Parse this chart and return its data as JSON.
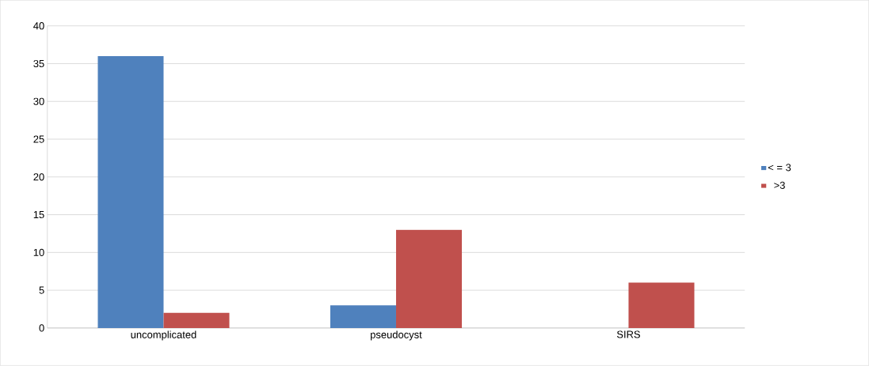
{
  "chart_data": {
    "type": "bar",
    "categories": [
      "uncomplicated",
      "pseudocyst",
      "SIRS"
    ],
    "series": [
      {
        "name": "< = 3",
        "color": "#4f81bd",
        "values": [
          36,
          3,
          0
        ]
      },
      {
        "name": ">3",
        "color": "#c0504d",
        "values": [
          2,
          13,
          6
        ]
      }
    ],
    "ylim": [
      0,
      40
    ],
    "yticks": [
      0,
      5,
      10,
      15,
      20,
      25,
      30,
      35,
      40
    ],
    "grid": "y",
    "legend": "right"
  }
}
